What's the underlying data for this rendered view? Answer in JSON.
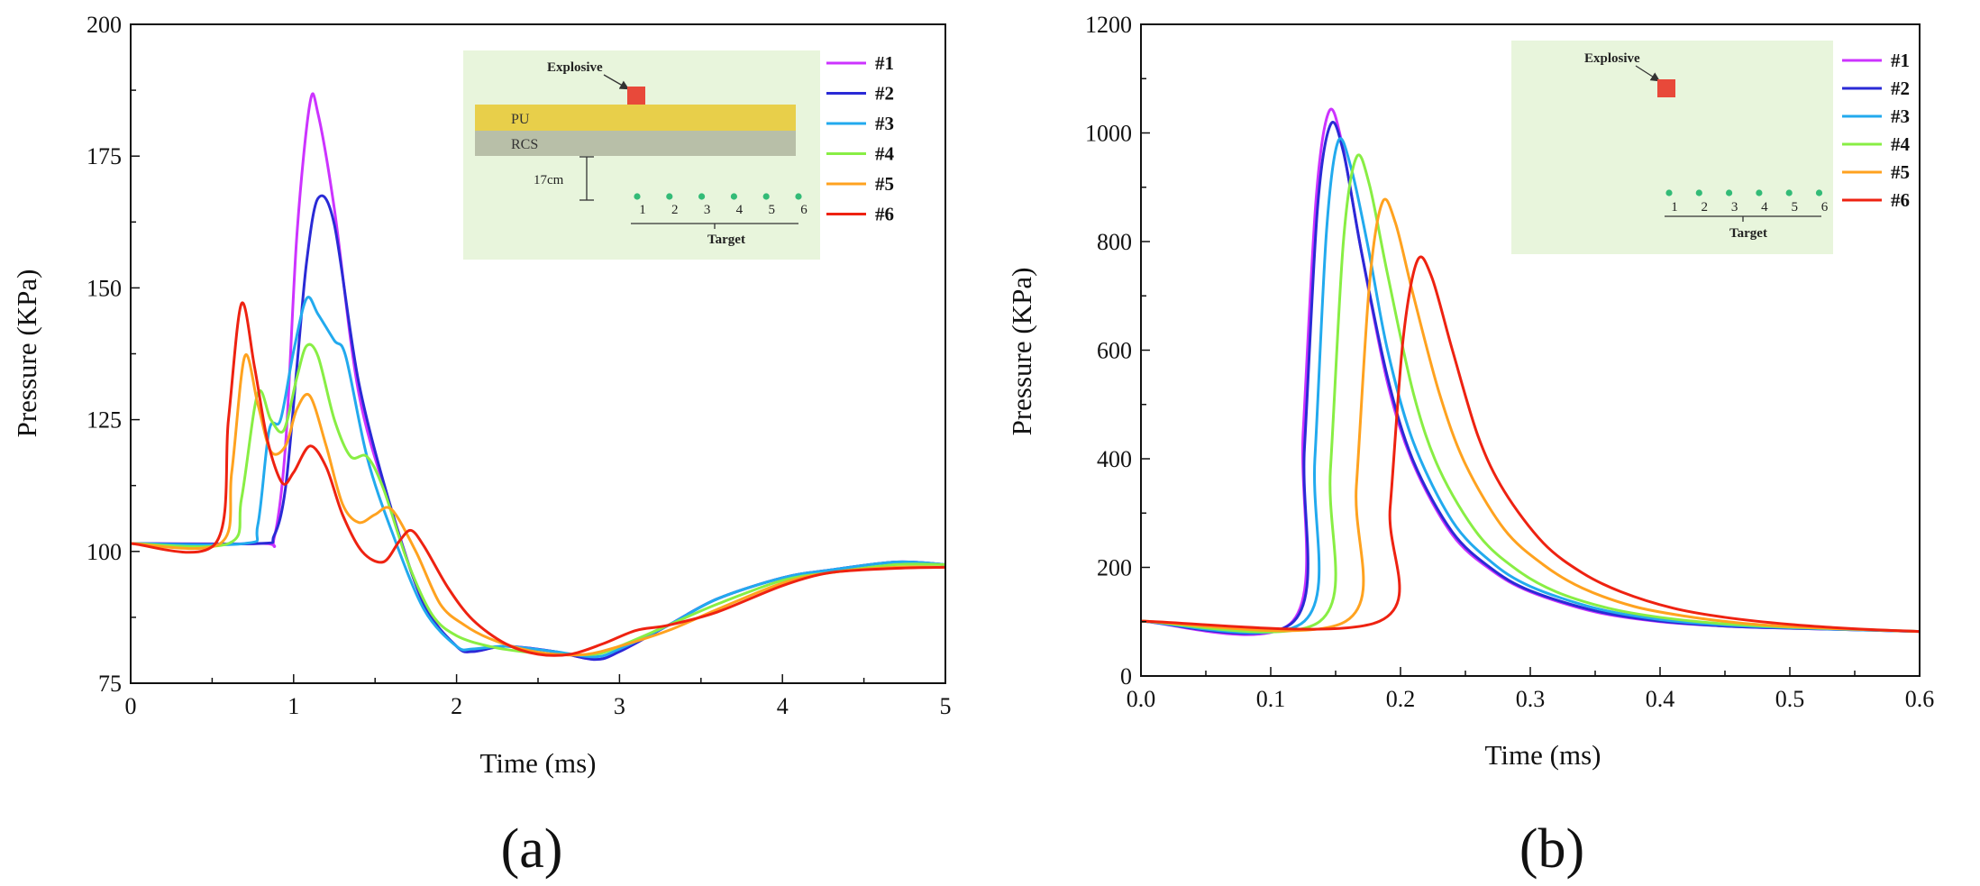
{
  "colors": {
    "#1": "#cc33ff",
    "#2": "#2a2ad6",
    "#3": "#22aaee",
    "#4": "#88ee44",
    "#5": "#ffa21f",
    "#6": "#ee2211",
    "inset_bg": "#e8f5dc",
    "pu_layer": "#e8cf4a",
    "rcs_layer": "#b8bfa8",
    "explosive": "#e8493a",
    "target_dot": "#33bb77"
  },
  "chart_data": [
    {
      "panel_label": "(a)",
      "type": "line",
      "title": "",
      "xlabel": "Time (ms)",
      "ylabel": "Pressure (KPa)",
      "xlim": [
        0,
        5
      ],
      "ylim": [
        75,
        200
      ],
      "xticks": [
        0,
        1,
        2,
        3,
        4,
        5
      ],
      "yticks": [
        75,
        100,
        125,
        150,
        175,
        200
      ],
      "xtick_labels": [
        "0",
        "1",
        "2",
        "3",
        "4",
        "5"
      ],
      "ytick_labels": [
        "75",
        "100",
        "125",
        "150",
        "175",
        "200"
      ],
      "legend_position": "top-right",
      "series": [
        {
          "name": "#1",
          "x": [
            0,
            0.8,
            0.88,
            0.95,
            1.02,
            1.1,
            1.15,
            1.25,
            1.4,
            1.6,
            1.8,
            2.0,
            2.1,
            2.3,
            2.6,
            2.85,
            3.0,
            3.3,
            3.6,
            4.0,
            4.3,
            4.7,
            5.0
          ],
          "y": [
            101.5,
            101.5,
            102.5,
            120,
            160,
            185,
            183,
            165,
            130,
            108,
            90,
            82,
            81,
            82,
            81,
            79.5,
            81,
            86,
            91,
            95,
            96.5,
            98,
            97.5
          ]
        },
        {
          "name": "#2",
          "x": [
            0,
            0.78,
            0.88,
            0.95,
            1.02,
            1.08,
            1.15,
            1.25,
            1.4,
            1.6,
            1.8,
            2.0,
            2.1,
            2.3,
            2.6,
            2.85,
            3.0,
            3.3,
            3.6,
            4.0,
            4.3,
            4.7,
            5.0
          ],
          "y": [
            101.5,
            101.5,
            103,
            112,
            135,
            155,
            167,
            162,
            132,
            108,
            90,
            82,
            81,
            82,
            81,
            79.5,
            81,
            86,
            91,
            95,
            96.5,
            98,
            97.5
          ]
        },
        {
          "name": "#3",
          "x": [
            0,
            0.7,
            0.78,
            0.85,
            0.92,
            1.0,
            1.08,
            1.15,
            1.25,
            1.32,
            1.45,
            1.6,
            1.8,
            2.0,
            2.1,
            2.3,
            2.6,
            2.85,
            3.0,
            3.3,
            3.6,
            4.0,
            4.3,
            4.7,
            5.0
          ],
          "y": [
            101.5,
            101.5,
            105,
            123,
            125,
            138,
            148,
            145,
            140,
            137,
            118,
            104,
            89,
            82,
            81.5,
            82,
            81,
            80,
            81.5,
            86,
            91,
            95,
            96.5,
            98,
            97.5
          ]
        },
        {
          "name": "#4",
          "x": [
            0,
            0.6,
            0.68,
            0.78,
            0.86,
            0.94,
            1.02,
            1.08,
            1.15,
            1.25,
            1.35,
            1.45,
            1.55,
            1.7,
            1.85,
            2.0,
            2.2,
            2.4,
            2.6,
            2.85,
            3.0,
            3.3,
            3.6,
            4.0,
            4.3,
            4.7,
            5.0
          ],
          "y": [
            101.5,
            101.5,
            110,
            130,
            125,
            123,
            133,
            139,
            137,
            125,
            118,
            118,
            112,
            98,
            88,
            84,
            82,
            81,
            80.5,
            80.5,
            82,
            86,
            90,
            94.5,
            96,
            97.5,
            97.5
          ]
        },
        {
          "name": "#5",
          "x": [
            0,
            0.55,
            0.62,
            0.7,
            0.78,
            0.86,
            0.95,
            1.02,
            1.1,
            1.2,
            1.3,
            1.4,
            1.5,
            1.6,
            1.75,
            1.9,
            2.05,
            2.2,
            2.4,
            2.6,
            2.8,
            3.0,
            3.3,
            3.6,
            4.0,
            4.3,
            4.7,
            5.0
          ],
          "y": [
            101.5,
            101.5,
            115,
            137,
            128,
            119,
            120,
            127,
            129.5,
            120,
            109,
            105.5,
            107,
            108,
            100,
            90,
            86,
            83.5,
            81.5,
            80.5,
            80.5,
            82,
            85,
            89,
            94,
            96,
            97,
            97
          ]
        },
        {
          "name": "#6",
          "x": [
            0,
            0.52,
            0.6,
            0.68,
            0.76,
            0.84,
            0.93,
            1.0,
            1.1,
            1.2,
            1.3,
            1.42,
            1.55,
            1.65,
            1.72,
            1.8,
            1.95,
            2.1,
            2.3,
            2.5,
            2.7,
            2.9,
            3.1,
            3.3,
            3.6,
            4.0,
            4.3,
            4.7,
            5.0
          ],
          "y": [
            101.5,
            101.5,
            125,
            147,
            135,
            121,
            113,
            115,
            120,
            116,
            107,
            100,
            98,
            102,
            104,
            101,
            93,
            87,
            82.5,
            80.5,
            80.5,
            82.5,
            85,
            86,
            88.5,
            93.5,
            96,
            96.8,
            97
          ]
        }
      ],
      "inset": {
        "explosive_label": "Explosive",
        "pu_label": "PU",
        "rcs_label": "RCS",
        "distance_label": "17cm",
        "target_label": "Target",
        "target_numbers": [
          "1",
          "2",
          "3",
          "4",
          "5",
          "6"
        ]
      }
    },
    {
      "panel_label": "(b)",
      "type": "line",
      "title": "",
      "xlabel": "Time (ms)",
      "ylabel": "Pressure (KPa)",
      "xlim": [
        0,
        0.6
      ],
      "ylim": [
        0,
        1200
      ],
      "xticks": [
        0,
        0.1,
        0.2,
        0.3,
        0.4,
        0.5,
        0.6
      ],
      "yticks": [
        0,
        200,
        400,
        600,
        800,
        1000,
        1200
      ],
      "xtick_labels": [
        "0.0",
        "0.1",
        "0.2",
        "0.3",
        "0.4",
        "0.5",
        "0.6"
      ],
      "ytick_labels": [
        "0",
        "200",
        "400",
        "600",
        "800",
        "1000",
        "1200"
      ],
      "legend_position": "top-right",
      "series": [
        {
          "name": "#1",
          "x": [
            0,
            0.117,
            0.125,
            0.135,
            0.145,
            0.155,
            0.17,
            0.19,
            0.21,
            0.24,
            0.27,
            0.3,
            0.35,
            0.4,
            0.45,
            0.5,
            0.55,
            0.6
          ],
          "y": [
            101,
            101,
            450,
            880,
            1040,
            980,
            780,
            540,
            390,
            260,
            195,
            155,
            118,
            100,
            92,
            88,
            85,
            82
          ]
        },
        {
          "name": "#2",
          "x": [
            0,
            0.118,
            0.126,
            0.136,
            0.146,
            0.156,
            0.17,
            0.19,
            0.21,
            0.24,
            0.27,
            0.3,
            0.35,
            0.4,
            0.45,
            0.5,
            0.55,
            0.6
          ],
          "y": [
            101,
            101,
            420,
            860,
            1015,
            965,
            780,
            550,
            395,
            265,
            198,
            157,
            120,
            101,
            92,
            88,
            85,
            82
          ]
        },
        {
          "name": "#3",
          "x": [
            0,
            0.126,
            0.134,
            0.143,
            0.152,
            0.162,
            0.175,
            0.19,
            0.21,
            0.24,
            0.27,
            0.3,
            0.35,
            0.4,
            0.45,
            0.5,
            0.55,
            0.6
          ],
          "y": [
            101,
            101,
            400,
            820,
            985,
            935,
            790,
            600,
            430,
            285,
            210,
            165,
            125,
            104,
            94,
            89,
            85,
            82
          ]
        },
        {
          "name": "#4",
          "x": [
            0,
            0.138,
            0.146,
            0.156,
            0.166,
            0.176,
            0.19,
            0.21,
            0.23,
            0.26,
            0.29,
            0.32,
            0.36,
            0.4,
            0.45,
            0.5,
            0.55,
            0.6
          ],
          "y": [
            101,
            101,
            380,
            800,
            955,
            905,
            740,
            520,
            380,
            260,
            195,
            155,
            125,
            108,
            96,
            90,
            86,
            82
          ]
        },
        {
          "name": "#5",
          "x": [
            0,
            0.158,
            0.166,
            0.176,
            0.186,
            0.196,
            0.21,
            0.23,
            0.25,
            0.28,
            0.31,
            0.34,
            0.38,
            0.42,
            0.46,
            0.5,
            0.55,
            0.6
          ],
          "y": [
            101,
            101,
            350,
            720,
            872,
            835,
            700,
            520,
            390,
            270,
            205,
            162,
            128,
            110,
            98,
            91,
            86,
            82
          ]
        },
        {
          "name": "#6",
          "x": [
            0,
            0.184,
            0.192,
            0.202,
            0.213,
            0.224,
            0.24,
            0.26,
            0.28,
            0.31,
            0.34,
            0.37,
            0.41,
            0.45,
            0.5,
            0.55,
            0.6
          ],
          "y": [
            101,
            101,
            310,
            620,
            765,
            735,
            600,
            440,
            340,
            245,
            190,
            155,
            125,
            108,
            95,
            87,
            82
          ]
        }
      ],
      "inset": {
        "explosive_label": "Explosive",
        "target_label": "Target",
        "target_numbers": [
          "1",
          "2",
          "3",
          "4",
          "5",
          "6"
        ]
      }
    }
  ]
}
